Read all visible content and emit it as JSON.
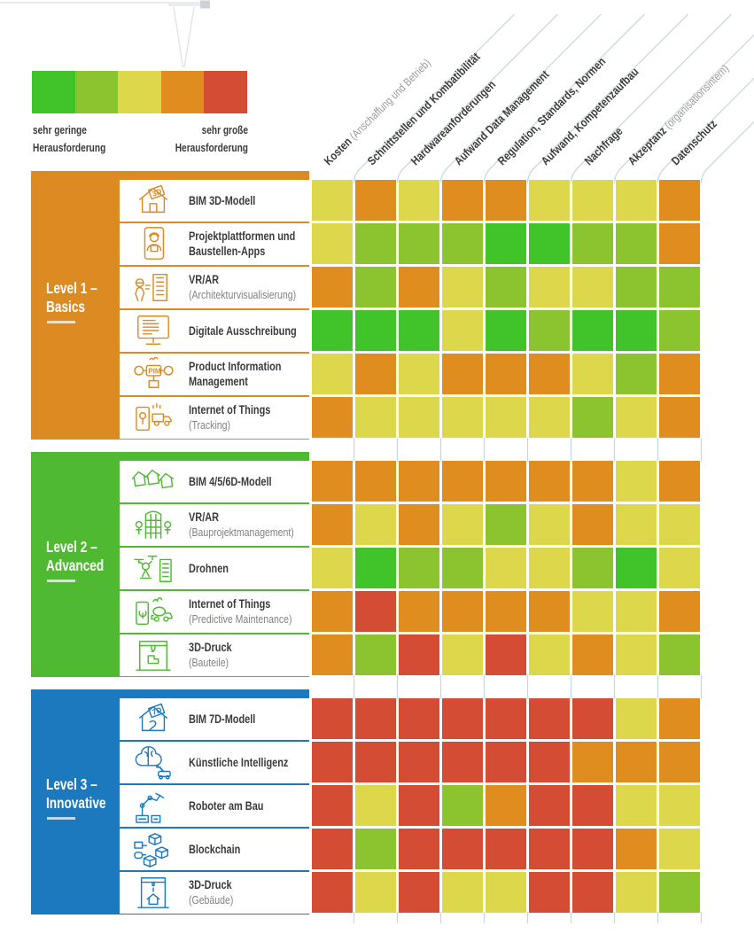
{
  "legend": {
    "scale_colors": [
      "#41c32a",
      "#8cc42f",
      "#dcd74b",
      "#e08d20",
      "#d54c34"
    ],
    "low_label": "sehr geringe\nHerausforderung",
    "high_label": "sehr große\nHerausforderung"
  },
  "chart_data": {
    "type": "heatmap",
    "title": "",
    "value_scale": {
      "1": "sehr geringe Herausforderung",
      "5": "sehr große Herausforderung"
    },
    "palette": {
      "1": "#41c32a",
      "2": "#8cc42f",
      "3": "#dcd74b",
      "4": "#e08d20",
      "5": "#d54c34"
    },
    "columns": [
      {
        "label": "Kosten",
        "sublabel": "(Anschaffung und Betrieb)"
      },
      {
        "label": "Schnittstellen und Kombatibilität",
        "sublabel": ""
      },
      {
        "label": "Hardwareanforderungen",
        "sublabel": ""
      },
      {
        "label": "Aufwand Data Management",
        "sublabel": ""
      },
      {
        "label": "Regulation, Standards, Normen",
        "sublabel": ""
      },
      {
        "label": "Aufwand, Kompetenzaufbau",
        "sublabel": ""
      },
      {
        "label": "Nachfrage",
        "sublabel": ""
      },
      {
        "label": "Akzeptanz",
        "sublabel": "(organisationsintern)"
      },
      {
        "label": "Datenschutz",
        "sublabel": ""
      }
    ],
    "groups": [
      {
        "title_line1": "Level 1 –",
        "title_line2": "Basics",
        "color": "#dc8a22",
        "rows": [
          {
            "label": "BIM 3D-Modell",
            "sublabel": "",
            "icon": "bim-3d-house-icon",
            "values": [
              3,
              4,
              3,
              4,
              4,
              3,
              3,
              3,
              4
            ]
          },
          {
            "label": "Projektplattformen und\nBaustellen-Apps",
            "sublabel": "",
            "icon": "tablet-worker-icon",
            "values": [
              3,
              2,
              2,
              2,
              1,
              1,
              2,
              2,
              4
            ]
          },
          {
            "label": "VR/AR",
            "sublabel": "(Architekturvisualisierung)",
            "icon": "vr-person-building-icon",
            "values": [
              4,
              2,
              4,
              3,
              2,
              3,
              3,
              2,
              2
            ]
          },
          {
            "label": "Digitale Ausschreibung",
            "sublabel": "",
            "icon": "monitor-document-icon",
            "values": [
              1,
              1,
              1,
              3,
              1,
              2,
              1,
              1,
              2
            ]
          },
          {
            "label": "Product Information\nManagement",
            "sublabel": "",
            "icon": "pim-icon",
            "values": [
              3,
              4,
              3,
              4,
              4,
              4,
              3,
              2,
              4
            ]
          },
          {
            "label": "Internet of Things",
            "sublabel": "(Tracking)",
            "icon": "phone-location-truck-icon",
            "values": [
              4,
              3,
              3,
              3,
              3,
              3,
              2,
              3,
              4
            ]
          }
        ]
      },
      {
        "title_line1": "Level 2 –",
        "title_line2": "Advanced",
        "color": "#4fba31",
        "rows": [
          {
            "label": "BIM 4/5/6D-Modell",
            "sublabel": "",
            "icon": "three-houses-icon",
            "values": [
              4,
              4,
              4,
              4,
              4,
              4,
              4,
              3,
              4
            ]
          },
          {
            "label": "VR/AR",
            "sublabel": "(Bauprojektmanagement)",
            "icon": "vr-structure-people-icon",
            "values": [
              4,
              3,
              4,
              3,
              2,
              3,
              4,
              3,
              3
            ]
          },
          {
            "label": "Drohnen",
            "sublabel": "",
            "icon": "drone-building-icon",
            "values": [
              3,
              1,
              2,
              2,
              3,
              3,
              2,
              1,
              3
            ]
          },
          {
            "label": "Internet of Things",
            "sublabel": "(Predictive Maintenance)",
            "icon": "phone-mixer-truck-icon",
            "values": [
              4,
              5,
              4,
              4,
              4,
              4,
              3,
              3,
              4
            ]
          },
          {
            "label": "3D-Druck",
            "sublabel": "(Bauteile)",
            "icon": "printer-part-icon",
            "values": [
              4,
              2,
              5,
              3,
              5,
              3,
              4,
              3,
              2
            ]
          }
        ]
      },
      {
        "title_line1": "Level 3 –",
        "title_line2": "Innovative",
        "color": "#1d79bd",
        "rows": [
          {
            "label": "BIM 7D-Modell",
            "sublabel": "",
            "icon": "bim-7d-house-icon",
            "values": [
              5,
              5,
              5,
              5,
              5,
              5,
              5,
              3,
              4
            ]
          },
          {
            "label": "Künstliche Intelligenz",
            "sublabel": "",
            "icon": "brain-robot-icon",
            "values": [
              5,
              5,
              5,
              5,
              5,
              5,
              4,
              4,
              4
            ]
          },
          {
            "label": "Roboter am Bau",
            "sublabel": "",
            "icon": "robot-arm-icon",
            "values": [
              5,
              3,
              5,
              2,
              4,
              5,
              5,
              3,
              3
            ]
          },
          {
            "label": "Blockchain",
            "sublabel": "",
            "icon": "blockchain-cubes-icon",
            "values": [
              5,
              2,
              5,
              5,
              5,
              5,
              5,
              4,
              3
            ]
          },
          {
            "label": "3D-Druck",
            "sublabel": "(Gebäude)",
            "icon": "printer-house-icon",
            "values": [
              5,
              3,
              5,
              3,
              3,
              5,
              5,
              3,
              2
            ]
          }
        ]
      }
    ]
  }
}
